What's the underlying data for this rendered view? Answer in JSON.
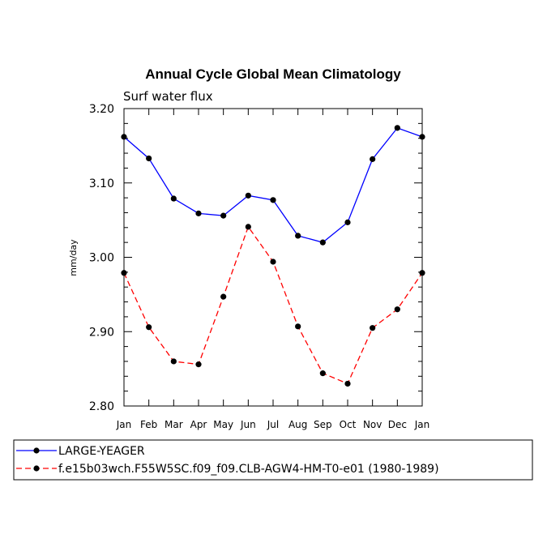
{
  "chart_data": {
    "type": "line",
    "title": "Annual Cycle Global Mean Climatology",
    "subtitle": "Surf water flux",
    "ylabel": "mm/day",
    "xlabel": "",
    "ylim": [
      2.8,
      3.2
    ],
    "yticks": [
      "2.80",
      "2.90",
      "3.00",
      "3.10",
      "3.20"
    ],
    "categories": [
      "Jan",
      "Feb",
      "Mar",
      "Apr",
      "May",
      "Jun",
      "Jul",
      "Aug",
      "Sep",
      "Oct",
      "Nov",
      "Dec",
      "Jan"
    ],
    "grid": false,
    "legend_position": "bottom",
    "series": [
      {
        "name": "LARGE-YEAGER",
        "color": "#0000ff",
        "dash": "solid",
        "values": [
          3.162,
          3.133,
          3.079,
          3.059,
          3.056,
          3.083,
          3.077,
          3.029,
          3.02,
          3.047,
          3.132,
          3.174,
          3.162
        ]
      },
      {
        "name": "f.e15b03wch.F55W5SC.f09_f09.CLB-AGW4-HM-T0-e01 (1980-1989)",
        "color": "#ff0000",
        "dash": "dashed",
        "values": [
          2.979,
          2.906,
          2.86,
          2.856,
          2.947,
          3.041,
          2.994,
          2.907,
          2.844,
          2.83,
          2.905,
          2.93,
          2.979
        ]
      }
    ]
  }
}
